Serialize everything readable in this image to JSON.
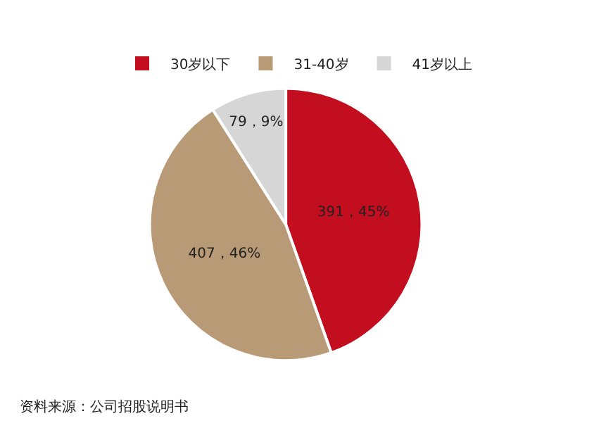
{
  "chart_data": {
    "type": "pie",
    "categories": [
      "30岁以下",
      "31-40岁",
      "41岁以上"
    ],
    "values": [
      391,
      407,
      79
    ],
    "colors": [
      "#c20e1f",
      "#b99a76",
      "#d6d6d6"
    ],
    "value_labels": [
      "391，45%",
      "407，46%",
      "79，9%"
    ],
    "legend": "top",
    "annotations": [
      "资料来源：公司招股说明书"
    ]
  }
}
